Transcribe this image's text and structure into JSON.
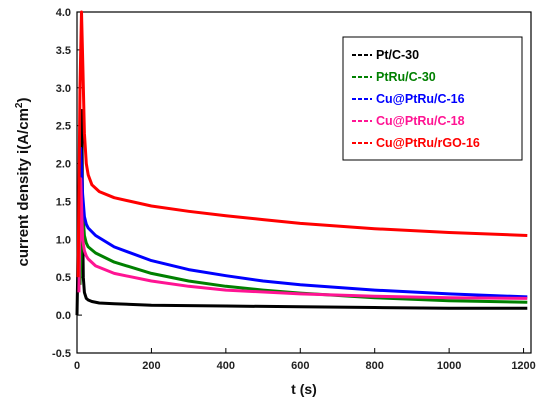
{
  "chart_data": {
    "type": "line",
    "title": "",
    "xlabel": "t (s)",
    "ylabel_main": "current density  i(A/cm",
    "ylabel_sup": "2",
    "ylabel_close": ")",
    "xlim": [
      0,
      1220
    ],
    "ylim": [
      -0.5,
      4.0
    ],
    "x_ticks": [
      0,
      200,
      400,
      600,
      800,
      1000,
      1200
    ],
    "y_ticks": [
      -0.5,
      0.0,
      0.5,
      1.0,
      1.5,
      2.0,
      2.5,
      3.0,
      3.5,
      4.0
    ],
    "y_tick_labels": [
      "-0.5",
      "0.0",
      "0.5",
      "1.0",
      "1.5",
      "2.0",
      "2.5",
      "3.0",
      "3.5",
      "4.0"
    ],
    "legend_position": "top-right",
    "series": [
      {
        "name": "Pt/C-30",
        "color": "#000000",
        "x": [
          0,
          5,
          10,
          13,
          15,
          17,
          20,
          25,
          30,
          40,
          60,
          100,
          200,
          400,
          600,
          800,
          1000,
          1210
        ],
        "y": [
          0.0,
          1.5,
          1.3,
          2.7,
          1.2,
          0.5,
          0.3,
          0.22,
          0.2,
          0.18,
          0.16,
          0.15,
          0.13,
          0.12,
          0.11,
          0.1,
          0.09,
          0.09
        ]
      },
      {
        "name": "PtRu/C-30",
        "color": "#008000",
        "x": [
          8,
          15,
          20,
          25,
          30,
          50,
          100,
          200,
          300,
          400,
          500,
          600,
          800,
          1000,
          1210
        ],
        "y": [
          0.4,
          1.4,
          1.05,
          0.95,
          0.9,
          0.82,
          0.7,
          0.55,
          0.45,
          0.38,
          0.33,
          0.29,
          0.23,
          0.19,
          0.17
        ]
      },
      {
        "name": "Cu@PtRu/C-16",
        "color": "#0000ff",
        "x": [
          5,
          10,
          15,
          20,
          25,
          30,
          50,
          100,
          200,
          300,
          400,
          500,
          600,
          800,
          1000,
          1210
        ],
        "y": [
          0.8,
          2.2,
          1.6,
          1.3,
          1.2,
          1.15,
          1.05,
          0.9,
          0.72,
          0.6,
          0.52,
          0.45,
          0.4,
          0.33,
          0.28,
          0.24
        ]
      },
      {
        "name": "Cu@PtRu/C-18",
        "color": "#ff1493",
        "x": [
          5,
          10,
          15,
          20,
          25,
          30,
          50,
          100,
          200,
          300,
          400,
          600,
          800,
          1000,
          1210
        ],
        "y": [
          0.3,
          1.8,
          1.0,
          0.85,
          0.78,
          0.74,
          0.65,
          0.55,
          0.45,
          0.38,
          0.33,
          0.28,
          0.25,
          0.23,
          0.22
        ]
      },
      {
        "name": "Cu@PtRu/rGO-16",
        "color": "#ff0000",
        "x": [
          3,
          8,
          12,
          16,
          20,
          25,
          30,
          40,
          60,
          100,
          200,
          300,
          400,
          500,
          600,
          800,
          1000,
          1210
        ],
        "y": [
          0.5,
          3.0,
          4.0,
          3.2,
          2.4,
          2.0,
          1.85,
          1.72,
          1.63,
          1.55,
          1.44,
          1.37,
          1.31,
          1.26,
          1.21,
          1.14,
          1.09,
          1.05
        ]
      }
    ]
  }
}
